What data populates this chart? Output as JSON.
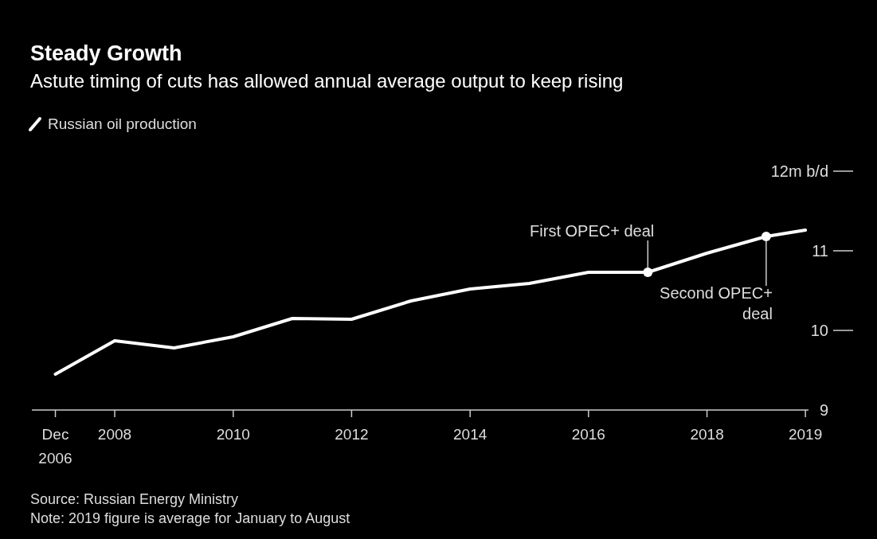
{
  "chart_data": {
    "type": "line",
    "title": "Steady Growth",
    "subtitle": "Astute timing of cuts has allowed annual average output to keep rising",
    "x": [
      "2006-12-31",
      "2008",
      "2009",
      "2010",
      "2011",
      "2012",
      "2013",
      "2014",
      "2015",
      "2016",
      "2017",
      "2018",
      "2019",
      "2019-08-31"
    ],
    "series": [
      {
        "name": "Russian oil production",
        "color": "#ffffff",
        "values": [
          9.45,
          9.87,
          9.78,
          9.92,
          10.15,
          10.14,
          10.37,
          10.52,
          10.59,
          10.73,
          10.73,
          10.97,
          11.18,
          11.26
        ]
      }
    ],
    "xlim": [
      "2006-08-08",
      "2019-09-19"
    ],
    "xticks": [
      {
        "value": "2006-12-31",
        "label": "Dec 2006"
      },
      "2008",
      "2010",
      "2012",
      "2014",
      "2016",
      "2018",
      {
        "value": "2019-08-31",
        "label": "2019"
      }
    ],
    "ylim": [
      9,
      12
    ],
    "yticks": [
      9,
      10,
      11,
      {
        "value": 12,
        "label": "12m b/d"
      }
    ],
    "legend": "top left",
    "annotations": [
      {
        "text": "First OPEC+ deal",
        "x": "2017",
        "y": 10.73
      },
      {
        "text": "Second OPEC+ deal",
        "x": "2019",
        "y": 11.18
      },
      "Source: Russian Energy Ministry",
      "Note: 2019 figure is average for January to August"
    ]
  }
}
